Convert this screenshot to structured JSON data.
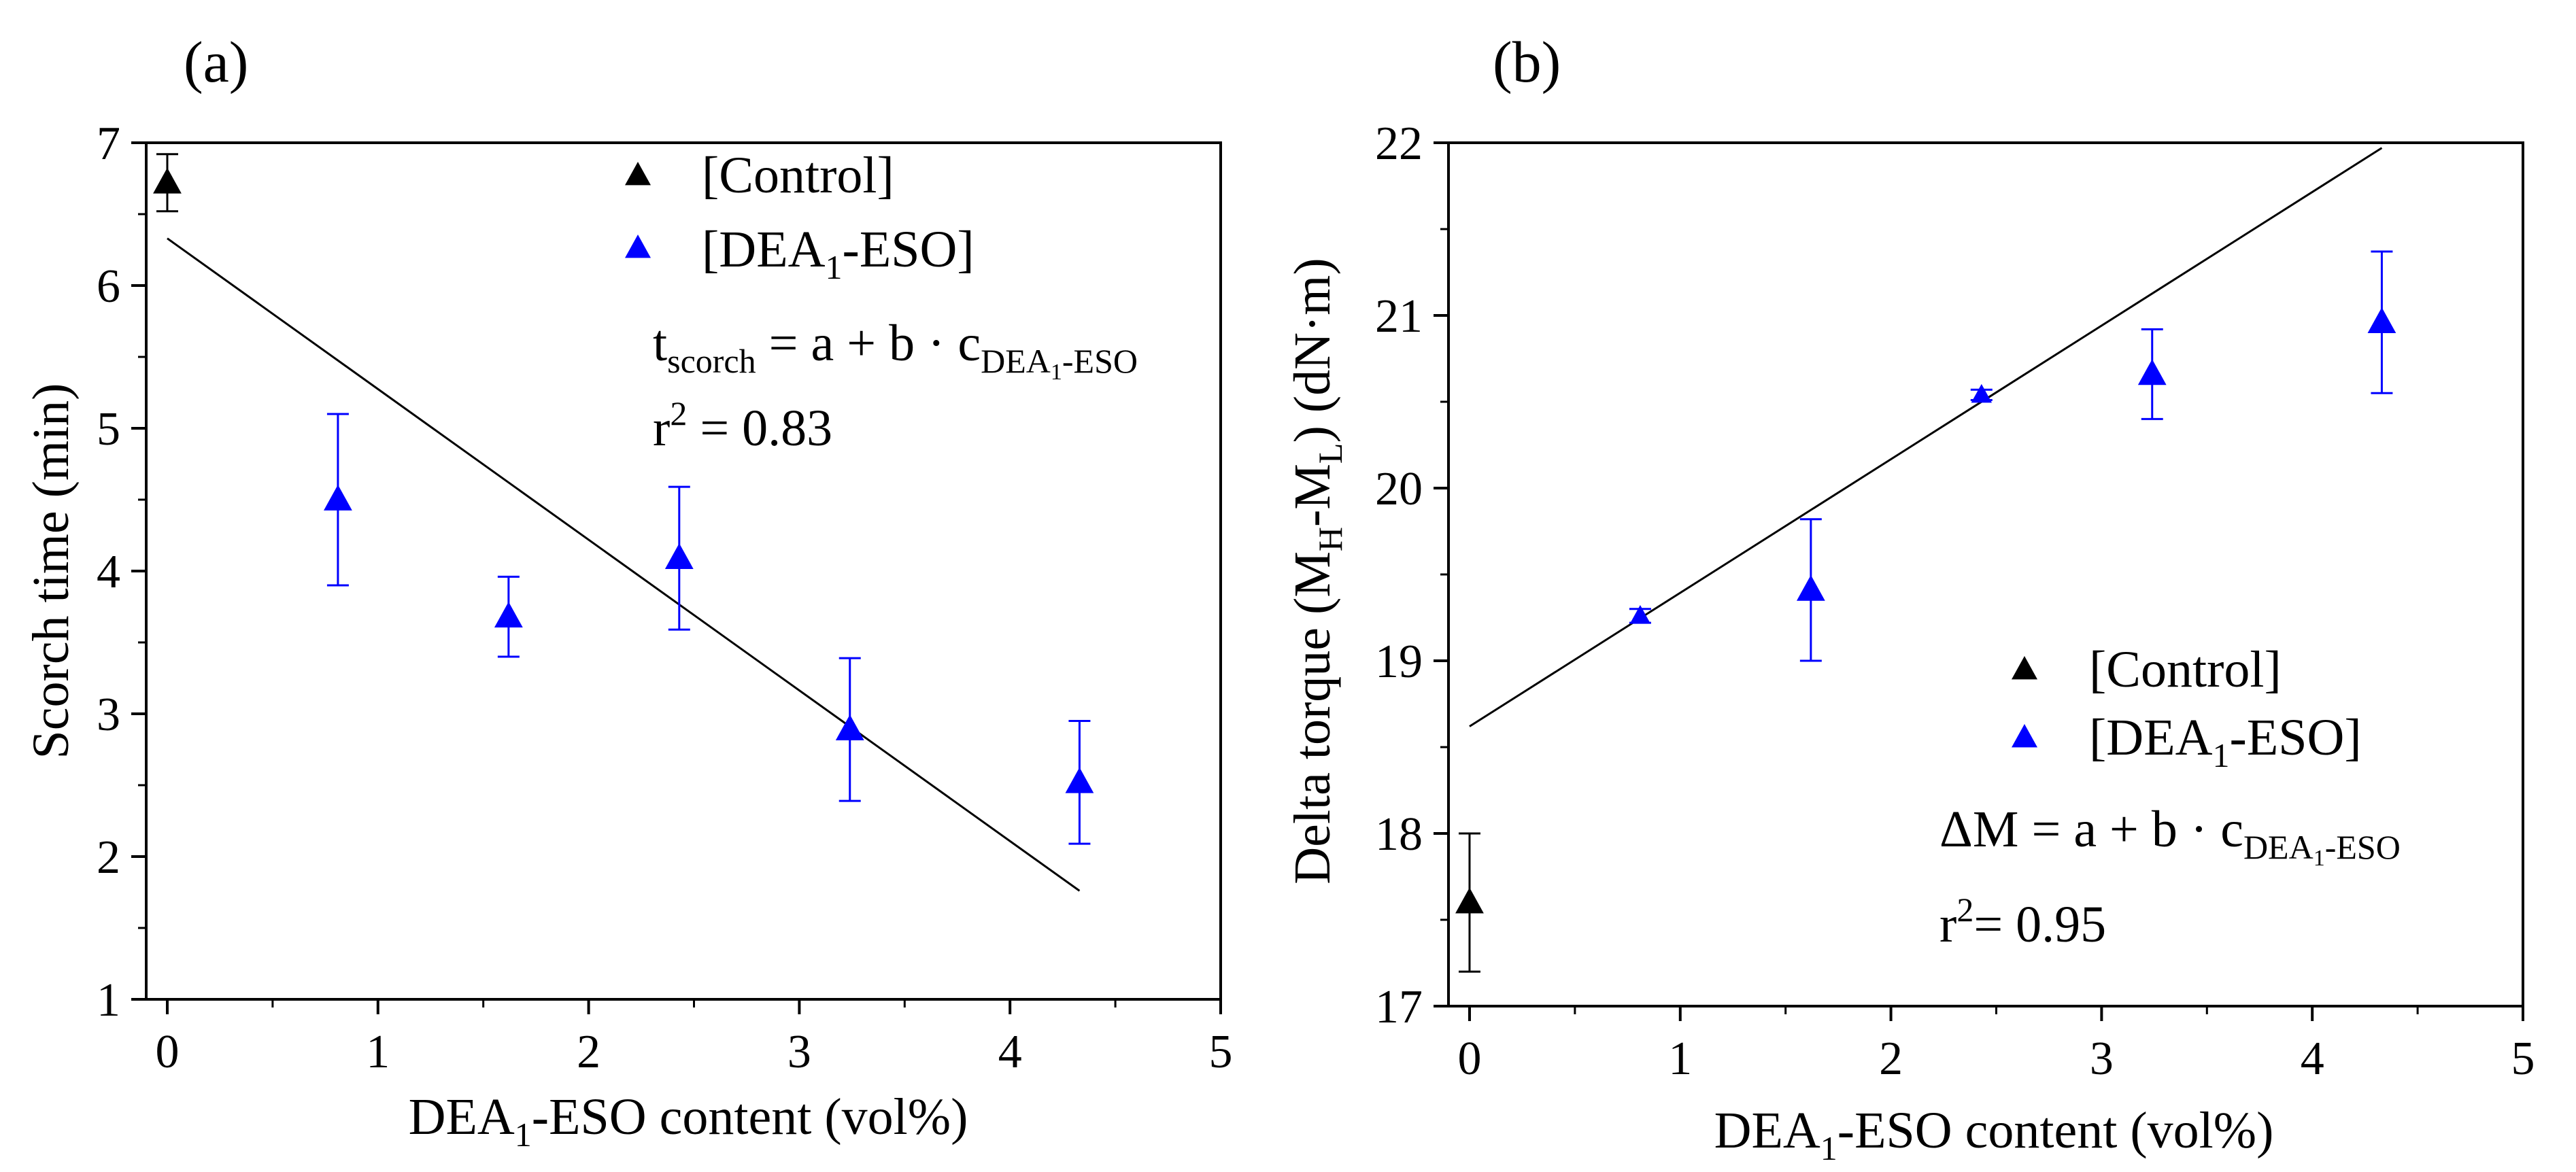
{
  "colors": {
    "control": "#000000",
    "dea": "#0000ff",
    "fit_line": "#000000",
    "axes": "#000000",
    "background": "#ffffff"
  },
  "chart_data": [
    {
      "id": "a",
      "type": "scatter",
      "panel_label": "(a)",
      "xlabel": {
        "pre": "DEA",
        "sub": "1",
        "post": "-ESO content (vol%)"
      },
      "ylabel": "Scorch time (min)",
      "xlim": [
        -0.1,
        5
      ],
      "ylim": [
        1,
        7
      ],
      "xticks": [
        0,
        1,
        2,
        3,
        4,
        5
      ],
      "yticks": [
        1,
        2,
        3,
        4,
        5,
        6,
        7
      ],
      "grid": false,
      "legend_position": "top-right",
      "series": [
        {
          "name": "[Control]",
          "legend": {
            "pre": "[Control]",
            "sub": "",
            "post": ""
          },
          "color": "#000000",
          "marker": "triangle-up",
          "points": [
            {
              "x": 0,
              "y": 6.72,
              "err": 0.2
            }
          ]
        },
        {
          "name": "[DEA1-ESO]",
          "legend": {
            "pre": "[DEA",
            "sub": "1",
            "post": "-ESO]"
          },
          "color": "#0000ff",
          "marker": "triangle-up",
          "points": [
            {
              "x": 0.81,
              "y": 4.5,
              "err": 0.6
            },
            {
              "x": 1.62,
              "y": 3.68,
              "err": 0.28
            },
            {
              "x": 2.43,
              "y": 4.09,
              "err": 0.5
            },
            {
              "x": 3.24,
              "y": 2.89,
              "err": 0.5
            },
            {
              "x": 4.33,
              "y": 2.52,
              "err": 0.43
            }
          ]
        }
      ],
      "fit_line": {
        "x": [
          0,
          4.33
        ],
        "y": [
          6.33,
          1.76
        ]
      },
      "annotations": {
        "equation": {
          "lhs": "t",
          "lhs_sub": "scorch",
          "rhs": " = a + b · c",
          "rhs_sub": "DEA",
          "rhs_sub_sub": "1",
          "rhs_sub_post": "-ESO"
        },
        "r2": {
          "pre": "r",
          "sup": "2",
          "post": " = 0.83"
        }
      }
    },
    {
      "id": "b",
      "type": "scatter",
      "panel_label": "(b)",
      "xlabel": {
        "pre": "DEA",
        "sub": "1",
        "post": "-ESO content (vol%)"
      },
      "ylabel": {
        "pre": "Delta torque (M",
        "sub1": "H",
        "mid": "-M",
        "sub2": "L",
        "post": ") (dN·m)"
      },
      "xlim": [
        -0.1,
        5
      ],
      "ylim": [
        17,
        22
      ],
      "xticks": [
        0,
        1,
        2,
        3,
        4,
        5
      ],
      "yticks": [
        17,
        18,
        19,
        20,
        21,
        22
      ],
      "grid": false,
      "legend_position": "bottom-right",
      "series": [
        {
          "name": "[Control]",
          "legend": {
            "pre": "[Control]",
            "sub": "",
            "post": ""
          },
          "color": "#000000",
          "marker": "triangle-up",
          "points": [
            {
              "x": 0,
              "y": 17.6,
              "err": 0.4
            }
          ]
        },
        {
          "name": "[DEA1-ESO]",
          "legend": {
            "pre": "[DEA",
            "sub": "1",
            "post": "-ESO]"
          },
          "color": "#0000ff",
          "marker": "triangle-up",
          "points": [
            {
              "x": 0.81,
              "y": 19.26,
              "err": 0.04
            },
            {
              "x": 1.62,
              "y": 19.41,
              "err": 0.41
            },
            {
              "x": 2.43,
              "y": 20.54,
              "err": 0.03
            },
            {
              "x": 3.24,
              "y": 20.66,
              "err": 0.26
            },
            {
              "x": 4.33,
              "y": 20.96,
              "err": 0.41
            }
          ]
        }
      ],
      "fit_line": {
        "x": [
          0,
          4.33
        ],
        "y": [
          18.62,
          21.97
        ]
      },
      "annotations": {
        "equation": {
          "lhs": "ΔM = ",
          "lhs_sub": "",
          "rhs": " a + b · c",
          "rhs_sub": "DEA",
          "rhs_sub_sub": "1",
          "rhs_sub_post": "-ESO"
        },
        "r2": {
          "pre": "r",
          "sup": "2",
          "post": "= 0.95"
        }
      }
    }
  ]
}
